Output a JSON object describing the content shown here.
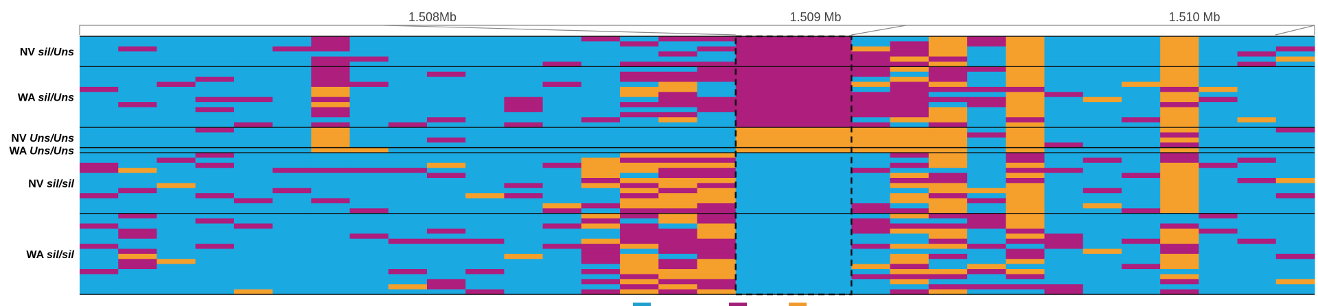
{
  "colors": {
    "blue": "#1ba9e1",
    "magenta": "#ad1e7d",
    "orange": "#f59f2c",
    "legend_blue": "#20a0cf",
    "legend_magenta": "#a21f78",
    "legend_orange": "#f09a2e"
  },
  "axis": {
    "ticks": [
      "1.508Mb",
      "1.509 Mb",
      "1.510 Mb"
    ]
  },
  "groups": [
    {
      "pop": "NV",
      "geno": "sil/Uns",
      "rows": 6
    },
    {
      "pop": "WA",
      "geno": "sil/Uns",
      "rows": 12
    },
    {
      "pop": "NV",
      "geno": "Uns/Uns",
      "rows": 4
    },
    {
      "pop": "WA",
      "geno": "Uns/Uns",
      "rows": 1
    },
    {
      "pop": "NV",
      "geno": "sil/sil",
      "rows": 12
    },
    {
      "pop": "WA",
      "geno": "sil/sil",
      "rows": 16
    }
  ],
  "highlight": {
    "start_col": 17,
    "end_col": 20
  },
  "legend": [
    {
      "color": "legend_blue"
    },
    {
      "color": "legend_magenta"
    },
    {
      "color": "legend_orange"
    }
  ]
}
